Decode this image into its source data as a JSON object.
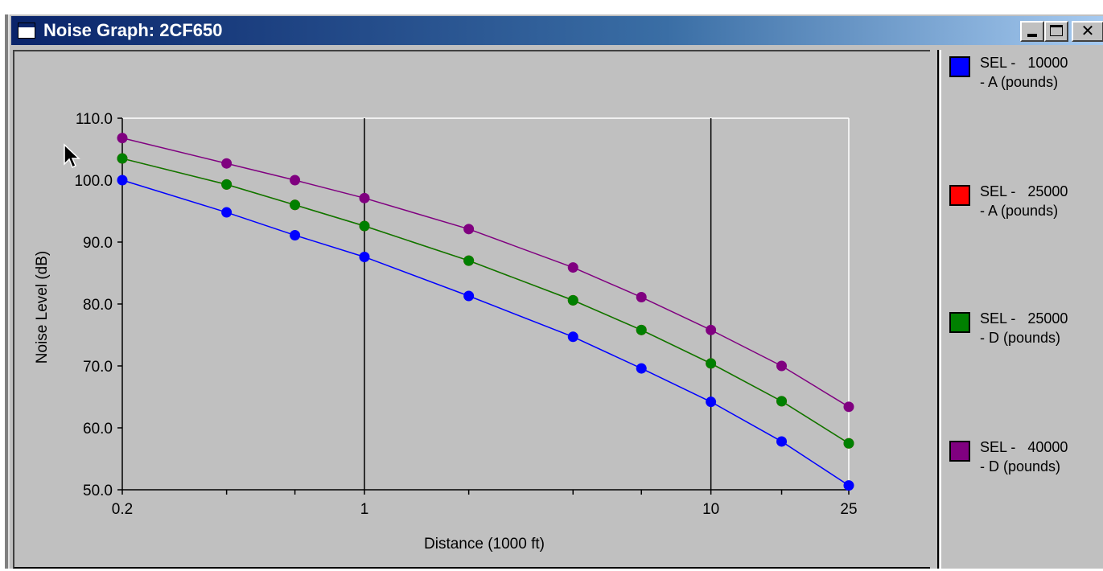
{
  "window": {
    "title": "Noise Graph: 2CF650",
    "minimize_label": "_",
    "maximize_label": "□",
    "close_label": "✕",
    "title_icon": "window-icon"
  },
  "legend": {
    "items": [
      {
        "line1": "SEL -   10000",
        "line2": "- A (pounds)",
        "color": "#0000ff"
      },
      {
        "line1": "SEL -   25000",
        "line2": "- A (pounds)",
        "color": "#ff0000"
      },
      {
        "line1": "SEL -   25000",
        "line2": "- D (pounds)",
        "color": "#008000"
      },
      {
        "line1": "SEL -   40000",
        "line2": "- D (pounds)",
        "color": "#800080"
      }
    ]
  },
  "chart_data": {
    "type": "line",
    "xlabel": "Distance (1000 ft)",
    "ylabel": "Noise Level (dB)",
    "xscale": "log",
    "xlim": [
      0.2,
      25
    ],
    "ylim": [
      50,
      110
    ],
    "xticks": [
      0.2,
      0.4,
      0.63,
      1,
      2,
      4,
      6.3,
      10,
      16,
      25
    ],
    "xtick_labels": [
      "0.2",
      "",
      "",
      "1",
      "",
      "",
      "",
      "10",
      "",
      "25"
    ],
    "yticks": [
      50,
      60,
      70,
      80,
      90,
      100,
      110
    ],
    "ytick_labels": [
      "50.0",
      "60.0",
      "70.0",
      "80.0",
      "90.0",
      "100.0",
      "110.0"
    ],
    "vertical_gridlines": [
      1,
      10
    ],
    "x": [
      0.2,
      0.4,
      0.63,
      1,
      2,
      4,
      6.3,
      10,
      16,
      25
    ],
    "series": [
      {
        "name": "SEL -   10000 - A (pounds)",
        "color": "#0000ff",
        "values": [
          100.0,
          94.8,
          91.1,
          87.6,
          81.3,
          74.7,
          69.6,
          64.2,
          57.8,
          50.7
        ]
      },
      {
        "name": "SEL -   25000 - A (pounds)",
        "color": "#ff0000",
        "values": [
          103.5,
          99.3,
          96.0,
          92.6,
          87.0,
          80.6,
          75.8,
          70.4,
          64.3,
          57.5
        ]
      },
      {
        "name": "SEL -   25000 - D (pounds)",
        "color": "#008000",
        "values": [
          103.5,
          99.3,
          96.0,
          92.6,
          87.0,
          80.6,
          75.8,
          70.4,
          64.3,
          57.5
        ]
      },
      {
        "name": "SEL -   40000 - D (pounds)",
        "color": "#800080",
        "values": [
          106.8,
          102.7,
          100.0,
          97.1,
          92.1,
          85.9,
          81.1,
          75.8,
          70.0,
          63.4
        ]
      }
    ],
    "legend_position": "right",
    "grid": false
  }
}
